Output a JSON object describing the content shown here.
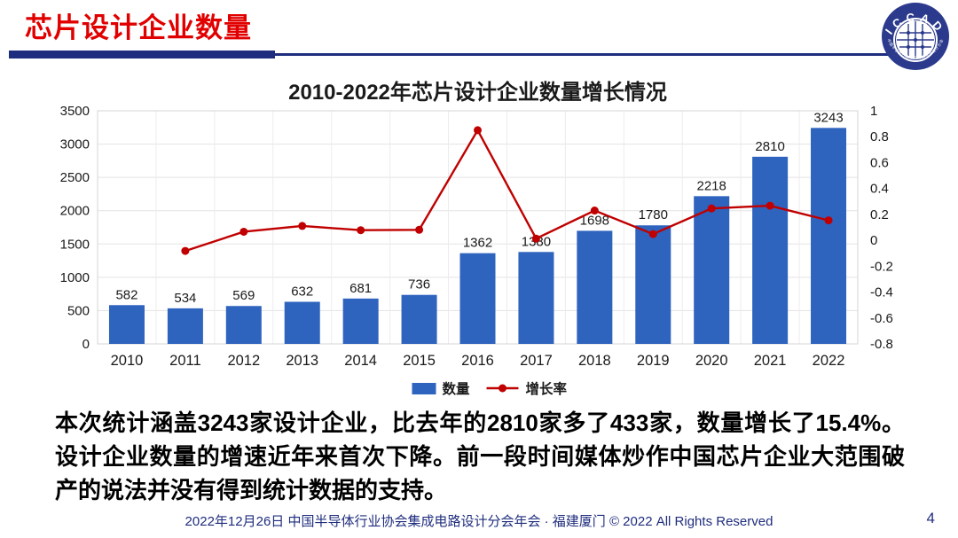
{
  "header": {
    "title": "芯片设计企业数量"
  },
  "logo": {
    "text": "ICCAD",
    "subtext": "中国半导体行业协会集成电路设计分会"
  },
  "chart_data": {
    "type": "bar",
    "subtype": "combo-bar-line",
    "title": "2010-2022年芯片设计企业数量增长情况",
    "categories": [
      "2010",
      "2011",
      "2012",
      "2013",
      "2014",
      "2015",
      "2016",
      "2017",
      "2018",
      "2019",
      "2020",
      "2021",
      "2022"
    ],
    "series": [
      {
        "name": "数量",
        "type": "bar",
        "axis": "left",
        "color": "#2e63be",
        "values": [
          582,
          534,
          569,
          632,
          681,
          736,
          1362,
          1380,
          1698,
          1780,
          2218,
          2810,
          3243
        ]
      },
      {
        "name": "增长率",
        "type": "line",
        "axis": "right",
        "color": "#c00000",
        "values": [
          null,
          -0.082,
          0.066,
          0.111,
          0.078,
          0.081,
          0.85,
          0.013,
          0.23,
          0.048,
          0.246,
          0.267,
          0.154
        ]
      }
    ],
    "left_axis": {
      "min": 0,
      "max": 3500,
      "step": 500,
      "ticks": [
        "0",
        "500",
        "1000",
        "1500",
        "2000",
        "2500",
        "3000",
        "3500"
      ]
    },
    "right_axis": {
      "min": -0.8,
      "max": 1,
      "step": 0.2,
      "ticks": [
        "-0.8",
        "-0.6",
        "-0.4",
        "-0.2",
        "0",
        "0.2",
        "0.4",
        "0.6",
        "0.8",
        "1"
      ]
    },
    "grid": true,
    "legend_position": "bottom"
  },
  "body_text": "本次统计涵盖3243家设计企业，比去年的2810家多了433家，数量增长了15.4%。设计企业数量的增速近年来首次下降。前一段时间媒体炒作中国芯片企业大范围破产的说法并没有得到统计数据的支持。",
  "footer": {
    "text": "2022年12月26日 中国半导体行业协会集成电路设计分会年会 · 福建厦门 © 2022 All Rights Reserved",
    "page": "4"
  },
  "colors": {
    "header_red": "#e10000",
    "navy": "#1f2d7e",
    "bar_blue": "#2e63be",
    "line_red": "#c00000",
    "grid_gray": "#e3e3e3"
  }
}
